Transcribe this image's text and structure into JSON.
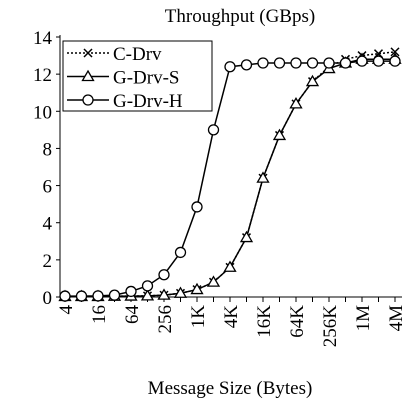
{
  "chart_data": {
    "type": "line",
    "title": "Throughput (GBps)",
    "x_label": "Message Size (Bytes)",
    "categories": [
      "4",
      null,
      "16",
      null,
      "64",
      null,
      "256",
      null,
      "1K",
      null,
      "4K",
      null,
      "16K",
      null,
      "64K",
      null,
      "256K",
      null,
      "1M",
      null,
      "4M"
    ],
    "series": [
      {
        "name": "C-Drv",
        "color": "#000000",
        "marker": "x",
        "dash": "dotted",
        "values": [
          0.03,
          0.03,
          0.03,
          0.04,
          0.05,
          0.06,
          0.1,
          0.2,
          0.4,
          0.8,
          1.6,
          3.2,
          6.4,
          8.7,
          10.4,
          11.6,
          12.4,
          12.8,
          13.0,
          13.1,
          13.2
        ]
      },
      {
        "name": "G-Drv-S",
        "color": "#000000",
        "marker": "triangle",
        "dash": "solid",
        "values": [
          0.03,
          0.03,
          0.03,
          0.04,
          0.05,
          0.06,
          0.1,
          0.2,
          0.4,
          0.8,
          1.6,
          3.2,
          6.4,
          8.7,
          10.4,
          11.6,
          12.3,
          12.6,
          12.8,
          12.8,
          12.8
        ]
      },
      {
        "name": "G-Drv-H",
        "color": "#000000",
        "marker": "circle",
        "dash": "solid",
        "values": [
          0.05,
          0.05,
          0.06,
          0.1,
          0.3,
          0.6,
          1.2,
          2.4,
          4.85,
          9.0,
          12.4,
          12.5,
          12.6,
          12.6,
          12.6,
          12.6,
          12.6,
          12.6,
          12.7,
          12.7,
          12.7
        ]
      }
    ],
    "ylim": [
      0,
      14
    ],
    "yticks": [
      0,
      2,
      4,
      6,
      8,
      10,
      12,
      14
    ],
    "legend": "upper left"
  }
}
